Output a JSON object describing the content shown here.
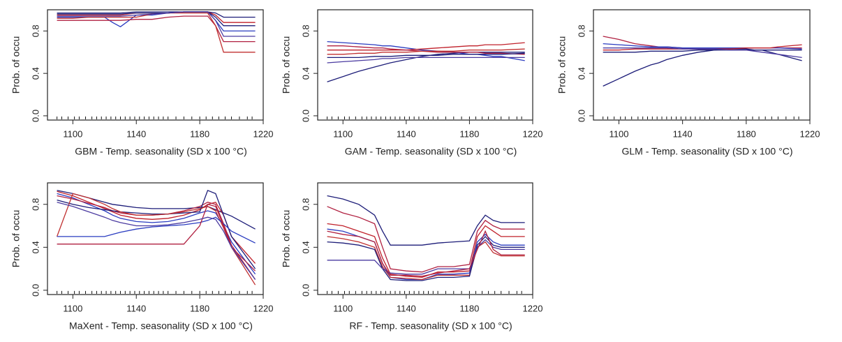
{
  "chart_data": [
    {
      "type": "line",
      "xlabel": "GBM - Temp. seasonality (SD x 100 °C)",
      "ylabel": "Prob. of occu",
      "xlim": [
        1084,
        1220
      ],
      "xticks": [
        1100,
        1140,
        1180,
        1220
      ],
      "ylim": [
        -0.04,
        1.0
      ],
      "yticks": [
        {
          "value": 0,
          "label": "0.0"
        },
        0.4,
        0.8
      ],
      "x": [
        1090,
        1100,
        1110,
        1120,
        1125,
        1130,
        1140,
        1150,
        1160,
        1170,
        1180,
        1185,
        1190,
        1195,
        1200,
        1215
      ],
      "rug": [
        1090,
        1093,
        1097,
        1101,
        1104,
        1108,
        1112,
        1115,
        1118,
        1121,
        1124,
        1127,
        1130,
        1133,
        1136,
        1139,
        1142,
        1145,
        1148,
        1151,
        1154,
        1157,
        1160,
        1165,
        1170,
        1175,
        1180,
        1184,
        1188,
        1192,
        1196,
        1200,
        1205,
        1210,
        1213
      ],
      "series": [
        {
          "color": "#1c1c78",
          "values": [
            0.97,
            0.97,
            0.97,
            0.97,
            0.97,
            0.97,
            0.98,
            0.98,
            0.98,
            0.98,
            0.98,
            0.98,
            0.97,
            0.93,
            0.93,
            0.93
          ]
        },
        {
          "color": "#c0202a",
          "values": [
            0.95,
            0.95,
            0.95,
            0.95,
            0.95,
            0.95,
            0.97,
            0.97,
            0.97,
            0.98,
            0.98,
            0.98,
            0.95,
            0.88,
            0.88,
            0.88
          ]
        },
        {
          "color": "#2a3cc0",
          "values": [
            0.93,
            0.93,
            0.93,
            0.93,
            0.88,
            0.84,
            0.95,
            0.95,
            0.97,
            0.98,
            0.98,
            0.98,
            0.9,
            0.8,
            0.8,
            0.8
          ]
        },
        {
          "color": "#b02040",
          "values": [
            0.9,
            0.9,
            0.9,
            0.9,
            0.9,
            0.9,
            0.91,
            0.91,
            0.93,
            0.94,
            0.94,
            0.94,
            0.85,
            0.7,
            0.7,
            0.7
          ]
        },
        {
          "color": "#c03030",
          "values": [
            0.92,
            0.92,
            0.93,
            0.93,
            0.93,
            0.93,
            0.93,
            0.96,
            0.97,
            0.97,
            0.97,
            0.97,
            0.85,
            0.6,
            0.6,
            0.6
          ]
        },
        {
          "color": "#1c1c78",
          "values": [
            0.96,
            0.96,
            0.96,
            0.96,
            0.96,
            0.96,
            0.97,
            0.97,
            0.97,
            0.98,
            0.98,
            0.98,
            0.93,
            0.85,
            0.85,
            0.85
          ]
        },
        {
          "color": "#4a3aa0",
          "values": [
            0.94,
            0.94,
            0.94,
            0.94,
            0.94,
            0.94,
            0.95,
            0.96,
            0.97,
            0.98,
            0.98,
            0.98,
            0.9,
            0.75,
            0.75,
            0.75
          ]
        }
      ]
    },
    {
      "type": "line",
      "xlabel": "GAM - Temp. seasonality (SD x 100 °C)",
      "ylabel": "Prob. of occu",
      "xlim": [
        1084,
        1220
      ],
      "xticks": [
        1100,
        1140,
        1180,
        1220
      ],
      "ylim": [
        -0.04,
        1.0
      ],
      "yticks": [
        {
          "value": 0,
          "label": "0.0"
        },
        0.4,
        0.8
      ],
      "x": [
        1090,
        1100,
        1110,
        1120,
        1125,
        1130,
        1140,
        1150,
        1160,
        1170,
        1180,
        1185,
        1190,
        1195,
        1200,
        1215
      ],
      "rug": [
        1090,
        1093,
        1097,
        1101,
        1104,
        1108,
        1112,
        1115,
        1118,
        1121,
        1124,
        1127,
        1130,
        1133,
        1136,
        1139,
        1142,
        1145,
        1148,
        1151,
        1154,
        1157,
        1160,
        1165,
        1170,
        1175,
        1180,
        1184,
        1188,
        1192,
        1196,
        1200,
        1205,
        1210,
        1213
      ],
      "series": [
        {
          "color": "#1c1c78",
          "values": [
            0.32,
            0.37,
            0.42,
            0.46,
            0.48,
            0.5,
            0.53,
            0.56,
            0.58,
            0.59,
            0.6,
            0.6,
            0.6,
            0.6,
            0.6,
            0.6
          ]
        },
        {
          "color": "#2a3cc0",
          "values": [
            0.7,
            0.69,
            0.68,
            0.67,
            0.66,
            0.66,
            0.64,
            0.62,
            0.61,
            0.6,
            0.58,
            0.58,
            0.57,
            0.56,
            0.56,
            0.52
          ]
        },
        {
          "color": "#c0202a",
          "values": [
            0.62,
            0.62,
            0.62,
            0.62,
            0.62,
            0.62,
            0.62,
            0.63,
            0.64,
            0.65,
            0.66,
            0.66,
            0.67,
            0.67,
            0.67,
            0.69
          ]
        },
        {
          "color": "#b02040",
          "values": [
            0.66,
            0.66,
            0.65,
            0.64,
            0.64,
            0.63,
            0.62,
            0.61,
            0.6,
            0.6,
            0.6,
            0.6,
            0.59,
            0.59,
            0.59,
            0.58
          ]
        },
        {
          "color": "#1c1c78",
          "values": [
            0.55,
            0.55,
            0.55,
            0.56,
            0.56,
            0.56,
            0.57,
            0.57,
            0.57,
            0.58,
            0.58,
            0.58,
            0.58,
            0.58,
            0.58,
            0.59
          ]
        },
        {
          "color": "#4a3aa0",
          "values": [
            0.5,
            0.51,
            0.52,
            0.53,
            0.54,
            0.54,
            0.55,
            0.55,
            0.55,
            0.55,
            0.55,
            0.55,
            0.55,
            0.55,
            0.55,
            0.55
          ]
        },
        {
          "color": "#c03030",
          "values": [
            0.58,
            0.58,
            0.59,
            0.59,
            0.6,
            0.6,
            0.6,
            0.61,
            0.61,
            0.61,
            0.62,
            0.62,
            0.62,
            0.62,
            0.62,
            0.63
          ]
        }
      ]
    },
    {
      "type": "line",
      "xlabel": "GLM - Temp. seasonality (SD x 100 °C)",
      "ylabel": "Prob. of occu",
      "xlim": [
        1084,
        1220
      ],
      "xticks": [
        1100,
        1140,
        1180,
        1220
      ],
      "ylim": [
        -0.04,
        1.0
      ],
      "yticks": [
        {
          "value": 0,
          "label": "0.0"
        },
        0.4,
        0.8
      ],
      "x": [
        1090,
        1100,
        1110,
        1120,
        1125,
        1130,
        1140,
        1150,
        1160,
        1170,
        1180,
        1185,
        1190,
        1195,
        1200,
        1215
      ],
      "rug": [
        1090,
        1093,
        1097,
        1101,
        1104,
        1108,
        1112,
        1115,
        1118,
        1121,
        1124,
        1127,
        1130,
        1133,
        1136,
        1139,
        1142,
        1145,
        1148,
        1151,
        1154,
        1157,
        1160,
        1165,
        1170,
        1175,
        1180,
        1184,
        1188,
        1192,
        1196,
        1200,
        1205,
        1210,
        1213
      ],
      "series": [
        {
          "color": "#1c1c78",
          "values": [
            0.28,
            0.35,
            0.42,
            0.48,
            0.5,
            0.53,
            0.57,
            0.6,
            0.62,
            0.63,
            0.63,
            0.62,
            0.62,
            0.6,
            0.58,
            0.52
          ]
        },
        {
          "color": "#b02040",
          "values": [
            0.75,
            0.72,
            0.68,
            0.66,
            0.65,
            0.65,
            0.64,
            0.64,
            0.64,
            0.64,
            0.64,
            0.64,
            0.64,
            0.64,
            0.64,
            0.64
          ]
        },
        {
          "color": "#2a3cc0",
          "values": [
            0.68,
            0.67,
            0.66,
            0.65,
            0.65,
            0.65,
            0.64,
            0.64,
            0.64,
            0.64,
            0.64,
            0.64,
            0.64,
            0.64,
            0.64,
            0.63
          ]
        },
        {
          "color": "#c0202a",
          "values": [
            0.62,
            0.62,
            0.63,
            0.63,
            0.63,
            0.63,
            0.63,
            0.63,
            0.63,
            0.63,
            0.64,
            0.64,
            0.64,
            0.64,
            0.65,
            0.67
          ]
        },
        {
          "color": "#1c1c78",
          "values": [
            0.6,
            0.6,
            0.6,
            0.61,
            0.61,
            0.61,
            0.61,
            0.62,
            0.62,
            0.62,
            0.62,
            0.62,
            0.62,
            0.62,
            0.62,
            0.62
          ]
        },
        {
          "color": "#4a3aa0",
          "values": [
            0.64,
            0.64,
            0.64,
            0.64,
            0.64,
            0.64,
            0.63,
            0.63,
            0.63,
            0.62,
            0.62,
            0.61,
            0.6,
            0.59,
            0.58,
            0.55
          ]
        }
      ]
    },
    {
      "type": "line",
      "xlabel": "MaXent - Temp. seasonality (SD x 100 °C)",
      "ylabel": "Prob. of occu",
      "xlim": [
        1084,
        1220
      ],
      "xticks": [
        1100,
        1140,
        1180,
        1220
      ],
      "ylim": [
        -0.04,
        1.0
      ],
      "yticks": [
        {
          "value": 0,
          "label": "0.0"
        },
        0.4,
        0.8
      ],
      "x": [
        1090,
        1100,
        1110,
        1120,
        1125,
        1130,
        1140,
        1150,
        1160,
        1170,
        1180,
        1185,
        1190,
        1195,
        1200,
        1215
      ],
      "rug": [
        1090,
        1093,
        1097,
        1101,
        1104,
        1108,
        1112,
        1115,
        1118,
        1121,
        1124,
        1127,
        1130,
        1133,
        1136,
        1139,
        1142,
        1145,
        1148,
        1151,
        1154,
        1157,
        1160,
        1165,
        1170,
        1175,
        1180,
        1184,
        1188,
        1192,
        1196,
        1200,
        1205,
        1210,
        1213
      ],
      "series": [
        {
          "color": "#1c1c78",
          "values": [
            0.93,
            0.9,
            0.86,
            0.82,
            0.8,
            0.79,
            0.77,
            0.76,
            0.76,
            0.76,
            0.77,
            0.78,
            0.75,
            0.72,
            0.69,
            0.57
          ]
        },
        {
          "color": "#c0202a",
          "values": [
            0.92,
            0.88,
            0.82,
            0.76,
            0.73,
            0.7,
            0.67,
            0.66,
            0.67,
            0.7,
            0.75,
            0.8,
            0.82,
            0.7,
            0.5,
            0.25
          ]
        },
        {
          "color": "#2a3cc0",
          "values": [
            0.9,
            0.86,
            0.8,
            0.74,
            0.7,
            0.67,
            0.64,
            0.63,
            0.64,
            0.67,
            0.72,
            0.74,
            0.72,
            0.6,
            0.45,
            0.15
          ]
        },
        {
          "color": "#b02040",
          "values": [
            0.88,
            0.85,
            0.81,
            0.77,
            0.74,
            0.72,
            0.7,
            0.7,
            0.71,
            0.74,
            0.78,
            0.82,
            0.8,
            0.62,
            0.42,
            0.1
          ]
        },
        {
          "color": "#1c1c78",
          "values": [
            0.84,
            0.8,
            0.77,
            0.75,
            0.74,
            0.73,
            0.72,
            0.71,
            0.71,
            0.72,
            0.73,
            0.93,
            0.9,
            0.7,
            0.5,
            0.2
          ]
        },
        {
          "color": "#c03030",
          "values": [
            0.5,
            0.9,
            0.86,
            0.8,
            0.76,
            0.73,
            0.7,
            0.7,
            0.71,
            0.73,
            0.76,
            0.78,
            0.74,
            0.58,
            0.4,
            0.05
          ]
        },
        {
          "color": "#2a3cc0",
          "values": [
            0.5,
            0.5,
            0.5,
            0.5,
            0.52,
            0.54,
            0.57,
            0.59,
            0.6,
            0.61,
            0.63,
            0.65,
            0.68,
            0.62,
            0.55,
            0.44
          ]
        },
        {
          "color": "#b02040",
          "values": [
            0.43,
            0.43,
            0.43,
            0.43,
            0.43,
            0.43,
            0.43,
            0.43,
            0.43,
            0.43,
            0.6,
            0.8,
            0.78,
            0.6,
            0.4,
            0.18
          ]
        },
        {
          "color": "#4a3aa0",
          "values": [
            0.82,
            0.78,
            0.73,
            0.68,
            0.65,
            0.63,
            0.6,
            0.6,
            0.61,
            0.63,
            0.66,
            0.68,
            0.66,
            0.55,
            0.4,
            0.1
          ]
        }
      ]
    },
    {
      "type": "line",
      "xlabel": "RF - Temp. seasonality (SD x 100 °C)",
      "ylabel": "Prob. of occu",
      "xlim": [
        1084,
        1220
      ],
      "xticks": [
        1100,
        1140,
        1180,
        1220
      ],
      "ylim": [
        -0.04,
        1.0
      ],
      "yticks": [
        {
          "value": 0,
          "label": "0.0"
        },
        0.4,
        0.8
      ],
      "x": [
        1090,
        1100,
        1110,
        1120,
        1125,
        1130,
        1140,
        1150,
        1160,
        1170,
        1180,
        1185,
        1190,
        1195,
        1200,
        1215
      ],
      "rug": [
        1090,
        1093,
        1097,
        1101,
        1104,
        1108,
        1112,
        1115,
        1118,
        1121,
        1124,
        1127,
        1130,
        1133,
        1136,
        1139,
        1142,
        1145,
        1148,
        1151,
        1154,
        1157,
        1160,
        1165,
        1170,
        1175,
        1180,
        1184,
        1188,
        1192,
        1196,
        1200,
        1205,
        1210,
        1213
      ],
      "series": [
        {
          "color": "#1c1c78",
          "values": [
            0.88,
            0.85,
            0.8,
            0.7,
            0.55,
            0.42,
            0.42,
            0.42,
            0.44,
            0.45,
            0.46,
            0.6,
            0.7,
            0.65,
            0.63,
            0.63
          ]
        },
        {
          "color": "#b02040",
          "values": [
            0.78,
            0.72,
            0.68,
            0.62,
            0.4,
            0.2,
            0.18,
            0.17,
            0.22,
            0.22,
            0.24,
            0.55,
            0.65,
            0.6,
            0.57,
            0.57
          ]
        },
        {
          "color": "#c0202a",
          "values": [
            0.62,
            0.6,
            0.55,
            0.5,
            0.3,
            0.15,
            0.13,
            0.12,
            0.17,
            0.17,
            0.18,
            0.5,
            0.6,
            0.55,
            0.5,
            0.5
          ]
        },
        {
          "color": "#2a3cc0",
          "values": [
            0.57,
            0.55,
            0.5,
            0.45,
            0.25,
            0.12,
            0.1,
            0.1,
            0.15,
            0.15,
            0.16,
            0.45,
            0.52,
            0.45,
            0.42,
            0.42
          ]
        },
        {
          "color": "#c03030",
          "values": [
            0.5,
            0.48,
            0.45,
            0.4,
            0.22,
            0.12,
            0.11,
            0.1,
            0.14,
            0.14,
            0.14,
            0.4,
            0.45,
            0.35,
            0.32,
            0.32
          ]
        },
        {
          "color": "#1c1c78",
          "values": [
            0.45,
            0.44,
            0.42,
            0.38,
            0.2,
            0.1,
            0.09,
            0.09,
            0.12,
            0.12,
            0.13,
            0.42,
            0.5,
            0.42,
            0.4,
            0.4
          ]
        },
        {
          "color": "#4a3aa0",
          "values": [
            0.28,
            0.28,
            0.28,
            0.28,
            0.2,
            0.16,
            0.15,
            0.15,
            0.2,
            0.2,
            0.2,
            0.4,
            0.47,
            0.4,
            0.38,
            0.38
          ]
        },
        {
          "color": "#b02040",
          "values": [
            0.55,
            0.52,
            0.5,
            0.45,
            0.25,
            0.14,
            0.14,
            0.13,
            0.16,
            0.18,
            0.2,
            0.38,
            0.55,
            0.38,
            0.33,
            0.33
          ]
        }
      ]
    }
  ]
}
